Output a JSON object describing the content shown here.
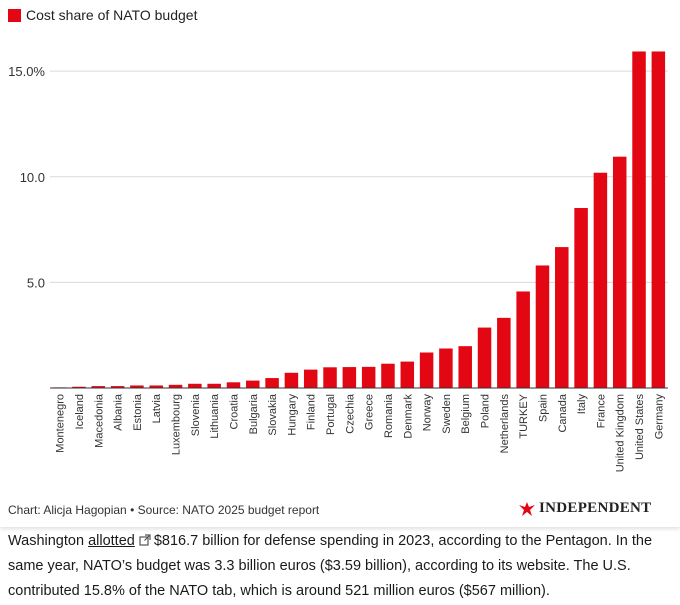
{
  "chart_data": {
    "type": "bar",
    "legend_label": "Cost share of NATO budget",
    "legend_position": "top-left",
    "bar_color": "#e30613",
    "grid_color": "#d9d9d9",
    "ylim": [
      0,
      16.0
    ],
    "yticks": [
      {
        "value": 5.0,
        "label": "5.0"
      },
      {
        "value": 10.0,
        "label": "10.0"
      },
      {
        "value": 15.0,
        "label": "15.0%"
      }
    ],
    "categories": [
      "Montenegro",
      "Iceland",
      "Macedonia",
      "Albania",
      "Estonia",
      "Latvia",
      "Luxembourg",
      "Slovenia",
      "Lithuania",
      "Croatia",
      "Bulgaria",
      "Slovakia",
      "Hungary",
      "Finland",
      "Portugal",
      "Czechia",
      "Greece",
      "Romania",
      "Denmark",
      "Norway",
      "Sweden",
      "Belgium",
      "Poland",
      "Netherlands",
      "TURKEY",
      "Spain",
      "Canada",
      "Italy",
      "France",
      "United Kingdom",
      "United States",
      "Germany"
    ],
    "values": [
      0.03,
      0.06,
      0.09,
      0.09,
      0.12,
      0.12,
      0.15,
      0.2,
      0.2,
      0.27,
      0.35,
      0.47,
      0.72,
      0.87,
      0.98,
      0.99,
      1.0,
      1.15,
      1.25,
      1.68,
      1.87,
      1.98,
      2.86,
      3.32,
      4.57,
      5.8,
      6.67,
      8.52,
      10.19,
      10.95,
      15.93,
      15.93
    ]
  },
  "footer": {
    "source": "Chart: Alicja Hagopian • Source: NATO 2025 budget report",
    "logo_text": "INDEPENDENT"
  },
  "article": {
    "text_before": "Washington ",
    "link_text": "allotted",
    "text_after": "$816.7 billion for defense spending in 2023, according to the Pentagon. In the same year, NATO’s budget was 3.3 billion euros ($3.59 billion), according to its website. The U.S. contributed 15.8% of the NATO tab, which is around 521 million euros ($567 million)."
  },
  "colors": {
    "logo_icon": "#e30613",
    "text": "#1a1a1a"
  },
  "icons": {
    "external_link": "external-link-icon",
    "logo": "eagle-logo-icon"
  }
}
